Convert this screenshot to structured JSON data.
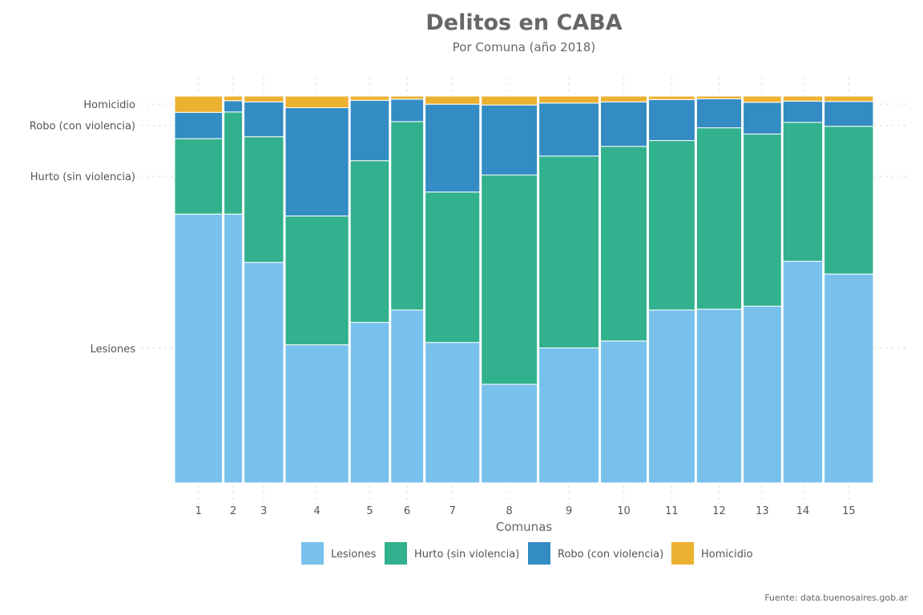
{
  "chart_data": {
    "type": "bar",
    "subtype": "mosaic (variable-width 100% stacked)",
    "title": "Delitos en CABA",
    "subtitle": "Por Comuna (año 2018)",
    "xlabel": "Comunas",
    "ylabel": "",
    "caption": "Fuente: data.buenosaires.gob.ar",
    "legend_position": "bottom",
    "grid": "dotted",
    "y_tick_labels": [
      "Lesiones",
      "Hurto (sin violencia)",
      "Robo (con violencia)",
      "Homicidio"
    ],
    "categories": [
      "1",
      "2",
      "3",
      "4",
      "5",
      "6",
      "7",
      "8",
      "9",
      "10",
      "11",
      "12",
      "13",
      "14",
      "15"
    ],
    "category_share": [
      0.07,
      0.027,
      0.058,
      0.093,
      0.057,
      0.048,
      0.08,
      0.082,
      0.088,
      0.068,
      0.068,
      0.066,
      0.056,
      0.058,
      0.072
    ],
    "series": [
      {
        "name": "Lesiones",
        "color": "#78C1EC",
        "values": [
          0.695,
          0.695,
          0.57,
          0.357,
          0.415,
          0.447,
          0.363,
          0.255,
          0.349,
          0.367,
          0.447,
          0.449,
          0.457,
          0.573,
          0.54
        ]
      },
      {
        "name": "Hurto (sin violencia)",
        "color": "#31B18D",
        "values": [
          0.195,
          0.264,
          0.325,
          0.333,
          0.418,
          0.487,
          0.389,
          0.541,
          0.496,
          0.503,
          0.438,
          0.469,
          0.445,
          0.359,
          0.382
        ]
      },
      {
        "name": "Robo (con violencia)",
        "color": "#338CC3",
        "values": [
          0.068,
          0.029,
          0.09,
          0.28,
          0.156,
          0.058,
          0.227,
          0.181,
          0.137,
          0.115,
          0.106,
          0.075,
          0.082,
          0.055,
          0.064
        ]
      },
      {
        "name": "Homicidio",
        "color": "#EDB132",
        "values": [
          0.042,
          0.012,
          0.015,
          0.03,
          0.011,
          0.008,
          0.021,
          0.023,
          0.018,
          0.015,
          0.009,
          0.007,
          0.016,
          0.013,
          0.014
        ]
      }
    ]
  }
}
